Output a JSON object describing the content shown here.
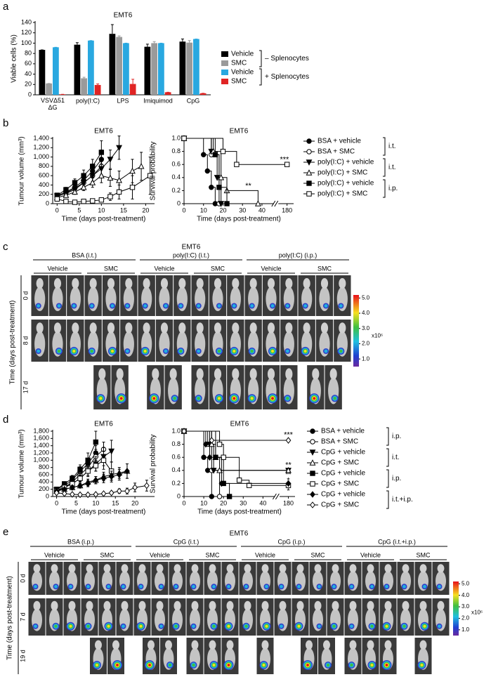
{
  "panel_labels": [
    "a",
    "b",
    "c",
    "d",
    "e"
  ],
  "chart_data": [
    {
      "type": "bar",
      "title": "EMT6",
      "y_label": "Viable cells (%)",
      "categories": [
        "VSVΔ51\nΔG",
        "poly(I:C)",
        "LPS",
        "Imiquimod",
        "CpG"
      ],
      "ylim": [
        0,
        140
      ],
      "yticks": [
        0,
        20,
        40,
        60,
        80,
        100,
        120,
        140
      ],
      "series": [
        {
          "name": "Vehicle",
          "color": "#000000",
          "values": [
            87,
            97,
            118,
            93,
            103
          ],
          "errors": [
            0,
            4,
            18,
            5,
            5
          ]
        },
        {
          "name": "SMC",
          "color": "#9a9a9a",
          "values": [
            22,
            32,
            112,
            100,
            101
          ],
          "errors": [
            0,
            2,
            2,
            3,
            4
          ]
        },
        {
          "name": "Vehicle",
          "color": "#29a8e0",
          "values": [
            92,
            105,
            100,
            100,
            108
          ],
          "errors": [
            0,
            0,
            0,
            0,
            0
          ]
        },
        {
          "name": "SMC",
          "color": "#e02424",
          "values": [
            1,
            19,
            21,
            5,
            3
          ],
          "errors": [
            0,
            2,
            9,
            0,
            0
          ]
        }
      ],
      "legend_groups": [
        "– Splenocytes",
        "+ Splenocytes"
      ]
    },
    {
      "type": "line",
      "title": "EMT6",
      "y_label": "Tumour volume (mm³)",
      "x_label": "Time (days post-treatment)",
      "xlim": [
        -1,
        22
      ],
      "xticks": [
        0,
        5,
        10,
        15,
        20
      ],
      "ylim": [
        0,
        1400
      ],
      "yticks": [
        0,
        200,
        400,
        600,
        800,
        {
          "value": 1000,
          "label": "1,000"
        },
        {
          "value": 1200,
          "label": "1,200"
        },
        {
          "value": 1400,
          "label": "1,400"
        }
      ],
      "series": [
        {
          "marker": "circle",
          "filled": true,
          "x": [
            0,
            2,
            4,
            6,
            8,
            10
          ],
          "values": [
            170,
            250,
            350,
            500,
            700,
            950
          ],
          "errors": [
            30,
            50,
            80,
            120,
            150,
            200
          ]
        },
        {
          "marker": "circle",
          "filled": false,
          "x": [
            0,
            2,
            4,
            6,
            8,
            10
          ],
          "values": [
            150,
            230,
            330,
            450,
            600,
            800
          ],
          "errors": [
            30,
            40,
            60,
            100,
            130,
            180
          ]
        },
        {
          "marker": "triangle-down",
          "filled": true,
          "x": [
            0,
            2,
            4,
            6,
            8,
            10,
            12,
            14
          ],
          "values": [
            160,
            220,
            300,
            450,
            600,
            750,
            950,
            1200
          ],
          "errors": [
            30,
            40,
            60,
            90,
            120,
            150,
            200,
            250
          ]
        },
        {
          "marker": "triangle-up",
          "filled": false,
          "x": [
            0,
            2,
            4,
            6,
            8,
            10,
            12,
            14,
            17,
            19
          ],
          "values": [
            130,
            180,
            250,
            350,
            450,
            600,
            550,
            500,
            700,
            800
          ],
          "errors": [
            20,
            30,
            50,
            70,
            100,
            150,
            180,
            200,
            250,
            300
          ]
        },
        {
          "marker": "square",
          "filled": true,
          "x": [
            0,
            2,
            4,
            6,
            8,
            10
          ],
          "values": [
            180,
            300,
            450,
            600,
            800,
            1100
          ],
          "errors": [
            30,
            50,
            80,
            120,
            150,
            250
          ]
        },
        {
          "marker": "square",
          "filled": false,
          "x": [
            0,
            2,
            4,
            6,
            8,
            10,
            12,
            14,
            17,
            21
          ],
          "values": [
            100,
            50,
            30,
            50,
            60,
            80,
            150,
            250,
            350,
            600
          ],
          "errors": [
            20,
            20,
            15,
            20,
            30,
            40,
            80,
            150,
            250,
            400
          ]
        }
      ]
    },
    {
      "type": "step",
      "title": "EMT6",
      "y_label": "Survival probability",
      "x_label": "Time (days post-treatment)",
      "xlim": [
        0,
        185
      ],
      "xbreak": [
        45,
        175
      ],
      "xticks": [
        0,
        10,
        20,
        30,
        40,
        180
      ],
      "ylim": [
        0,
        1
      ],
      "yticks": [
        0,
        0.2,
        0.4,
        0.6,
        0.8,
        {
          "value": 1,
          "label": "1.0"
        }
      ],
      "series": [
        {
          "name": "BSA + vehicle",
          "marker": "circle",
          "filled": true,
          "x": [
            0,
            10,
            12,
            14,
            16
          ],
          "values": [
            1,
            0.75,
            0.5,
            0.25,
            0
          ]
        },
        {
          "name": "BSA + SMC",
          "marker": "circle",
          "filled": false,
          "x": [
            0,
            14,
            18
          ],
          "values": [
            1,
            0.75,
            0
          ]
        },
        {
          "name": "poly(I:C) + vehicle",
          "marker": "triangle-down",
          "filled": true,
          "x": [
            0,
            14,
            17,
            19
          ],
          "values": [
            1,
            0.8,
            0.4,
            0
          ]
        },
        {
          "name": "poly(I:C) + SMC",
          "marker": "triangle-up",
          "filled": false,
          "x": [
            0,
            15,
            19,
            22,
            38
          ],
          "values": [
            1,
            0.8,
            0.4,
            0.2,
            0
          ]
        },
        {
          "name": "poly(I:C) + vehicle",
          "marker": "square",
          "filled": true,
          "x": [
            0,
            16,
            18,
            22
          ],
          "values": [
            1,
            0.75,
            0.25,
            0
          ]
        },
        {
          "name": "poly(I:C) + SMC",
          "marker": "square",
          "filled": false,
          "x": [
            0,
            20,
            27,
            180
          ],
          "values": [
            1,
            0.8,
            0.6,
            0.6
          ]
        }
      ],
      "legend_groups": [
        "i.t.",
        "i.t.",
        "i.p."
      ],
      "annotations": [
        {
          "text": "***",
          "x": 178,
          "y": 0.67
        },
        {
          "text": "**",
          "x": 33,
          "y": 0.27
        }
      ]
    },
    {
      "type": "line",
      "title": "EMT6",
      "y_label": "Tumour volume (mm³)",
      "x_label": "Time (days post-treatment)",
      "xlim": [
        -1,
        25
      ],
      "xticks": [
        0,
        5,
        10,
        15,
        20
      ],
      "ylim": [
        0,
        1800
      ],
      "yticks": [
        0,
        200,
        400,
        600,
        800,
        {
          "value": 1000,
          "label": "1,000"
        },
        {
          "value": 1200,
          "label": "1,200"
        },
        {
          "value": 1400,
          "label": "1,400"
        },
        {
          "value": 1600,
          "label": "1,600"
        },
        {
          "value": 1800,
          "label": "1,800"
        }
      ],
      "series": [
        {
          "marker": "circle",
          "filled": true,
          "x": [
            0,
            2,
            4,
            6,
            8,
            10
          ],
          "values": [
            200,
            300,
            450,
            700,
            900,
            1200
          ],
          "errors": [
            40,
            60,
            80,
            120,
            150,
            200
          ]
        },
        {
          "marker": "circle",
          "filled": false,
          "x": [
            0,
            2,
            4,
            6,
            8,
            10,
            12
          ],
          "values": [
            150,
            250,
            400,
            600,
            800,
            1100,
            1300
          ],
          "errors": [
            30,
            50,
            70,
            100,
            150,
            200,
            200
          ]
        },
        {
          "marker": "triangle-down",
          "filled": true,
          "x": [
            0,
            2,
            4,
            6,
            8,
            10,
            12,
            14
          ],
          "values": [
            180,
            250,
            350,
            500,
            700,
            900,
            1100,
            1250
          ],
          "errors": [
            30,
            50,
            70,
            100,
            150,
            200,
            250,
            300
          ]
        },
        {
          "marker": "triangle-up",
          "filled": false,
          "x": [
            0,
            2,
            4,
            6,
            8,
            10,
            12,
            14,
            16,
            18
          ],
          "values": [
            150,
            200,
            250,
            300,
            400,
            450,
            550,
            600,
            650,
            700
          ],
          "errors": [
            30,
            40,
            50,
            60,
            80,
            100,
            120,
            150,
            150,
            200
          ]
        },
        {
          "marker": "square",
          "filled": true,
          "x": [
            0,
            2,
            4,
            6,
            8,
            10
          ],
          "values": [
            200,
            350,
            500,
            750,
            1000,
            1500
          ],
          "errors": [
            40,
            60,
            80,
            120,
            200,
            300
          ]
        },
        {
          "marker": "square",
          "filled": false,
          "x": [
            0,
            2,
            4,
            6,
            8,
            10,
            12,
            14
          ],
          "values": [
            150,
            250,
            350,
            500,
            700,
            850,
            1000,
            700
          ],
          "errors": [
            30,
            50,
            60,
            80,
            120,
            150,
            250,
            250
          ]
        },
        {
          "marker": "diamond",
          "filled": true,
          "x": [
            0,
            2,
            4,
            6,
            8,
            10,
            12,
            14,
            16,
            18
          ],
          "values": [
            150,
            200,
            250,
            300,
            350,
            450,
            500,
            550,
            600,
            700
          ],
          "errors": [
            30,
            40,
            50,
            60,
            80,
            100,
            120,
            150,
            150,
            200
          ]
        },
        {
          "marker": "diamond",
          "filled": false,
          "x": [
            0,
            2,
            4,
            6,
            8,
            10,
            12,
            14,
            16,
            18,
            20,
            23
          ],
          "values": [
            100,
            80,
            60,
            50,
            50,
            60,
            80,
            100,
            150,
            150,
            250,
            300
          ],
          "errors": [
            20,
            20,
            15,
            15,
            15,
            20,
            30,
            40,
            60,
            80,
            120,
            150
          ]
        }
      ]
    },
    {
      "type": "step",
      "title": "EMT6",
      "y_label": "Survival probability",
      "x_label": "Time (days post-treatment)",
      "xlim": [
        0,
        185
      ],
      "xbreak": [
        45,
        175
      ],
      "xticks": [
        0,
        10,
        20,
        30,
        40,
        180
      ],
      "ylim": [
        0,
        1
      ],
      "yticks": [
        0,
        0.2,
        0.4,
        0.6,
        0.8,
        {
          "value": 1,
          "label": "1.0"
        }
      ],
      "series": [
        {
          "name": "BSA + vehicle",
          "marker": "circle",
          "filled": true,
          "x": [
            0,
            10,
            12,
            14
          ],
          "values": [
            1,
            0.6,
            0.4,
            0
          ]
        },
        {
          "name": "BSA + SMC",
          "marker": "circle",
          "filled": false,
          "x": [
            0,
            12,
            14,
            18
          ],
          "values": [
            1,
            0.8,
            0.4,
            0
          ]
        },
        {
          "name": "CpG + vehicle",
          "marker": "triangle-down",
          "filled": true,
          "x": [
            0,
            13,
            15,
            180
          ],
          "values": [
            1,
            0.8,
            0.4,
            0.4
          ]
        },
        {
          "name": "CpG + SMC",
          "marker": "triangle-up",
          "filled": false,
          "x": [
            0,
            14,
            16,
            18,
            180
          ],
          "values": [
            1,
            0.8,
            0.6,
            0.4,
            0.4
          ]
        },
        {
          "name": "CpG + vehicle",
          "marker": "square",
          "filled": true,
          "x": [
            0,
            16,
            20,
            23
          ],
          "values": [
            1,
            0.6,
            0.2,
            0
          ]
        },
        {
          "name": "CpG + SMC",
          "marker": "square",
          "filled": false,
          "x": [
            0,
            18,
            20,
            28,
            33,
            180
          ],
          "values": [
            1,
            0.8,
            0.6,
            0.25,
            0.17,
            0.17
          ]
        },
        {
          "name": "CpG + vehicle",
          "marker": "diamond",
          "filled": true,
          "x": [
            0,
            11,
            13,
            19,
            180
          ],
          "values": [
            1,
            0.8,
            0.6,
            0.2,
            0.2
          ]
        },
        {
          "name": "CpG + SMC",
          "marker": "diamond",
          "filled": false,
          "x": [
            0,
            14,
            180
          ],
          "values": [
            1,
            0.86,
            0.86
          ]
        }
      ],
      "legend_groups": [
        "i.p.",
        "i.t.",
        "i.p.",
        "i.t.+i.p."
      ],
      "annotations": [
        {
          "text": "***",
          "x": 180,
          "y": 0.94
        },
        {
          "text": "**",
          "x": 180,
          "y": 0.48
        },
        {
          "text": "**",
          "x": 180,
          "y": 0.33
        },
        {
          "text": "*",
          "x": 180,
          "y": 0.24
        },
        {
          "text": "*",
          "x": 180,
          "y": 0.08
        }
      ]
    }
  ],
  "image_panels": [
    {
      "title": "EMT6",
      "y_label": "Time (days post-treatment)",
      "groups": [
        {
          "label": "BSA (i.t.)",
          "subgroups": [
            "Vehicle",
            "SMC"
          ]
        },
        {
          "label": "poly(I:C) (i.t.)",
          "subgroups": [
            "Vehicle",
            "SMC"
          ]
        },
        {
          "label": "poly(I:C) (i.p.)",
          "subgroups": [
            "Vehicle",
            "SMC"
          ]
        }
      ],
      "rows": [
        "0 d",
        "8 d",
        "17 d"
      ],
      "colorbar": {
        "range": [
          0.5,
          5.2
        ],
        "ticks": [
          {
            "value": 5,
            "label": "5.0"
          },
          {
            "value": 4,
            "label": "4.0"
          },
          {
            "value": 3,
            "label": "3.0"
          },
          {
            "value": 2,
            "label": "2.0"
          },
          {
            "value": 1,
            "label": "1.0"
          }
        ],
        "unit": "x10⁶"
      }
    },
    {
      "title": "EMT6",
      "y_label": "Time (days post-treatment)",
      "groups": [
        {
          "label": "BSA (i.p.)",
          "subgroups": [
            "Vehicle",
            "SMC"
          ]
        },
        {
          "label": "CpG (i.t.)",
          "subgroups": [
            "Vehicle",
            "SMC"
          ]
        },
        {
          "label": "CpG (i.p.)",
          "subgroups": [
            "Vehicle",
            "SMC"
          ]
        },
        {
          "label": "CpG (i.t.+i.p.)",
          "subgroups": [
            "Vehicle",
            "SMC"
          ]
        }
      ],
      "rows": [
        "0 d",
        "7 d",
        "19 d"
      ],
      "colorbar": {
        "range": [
          0.5,
          5.2
        ],
        "ticks": [
          {
            "value": 5,
            "label": "5.0"
          },
          {
            "value": 4,
            "label": "4.0"
          },
          {
            "value": 3,
            "label": "3.0"
          },
          {
            "value": 2,
            "label": "2.0"
          },
          {
            "value": 1,
            "label": "1.0"
          }
        ],
        "unit": "x10⁶"
      }
    }
  ]
}
